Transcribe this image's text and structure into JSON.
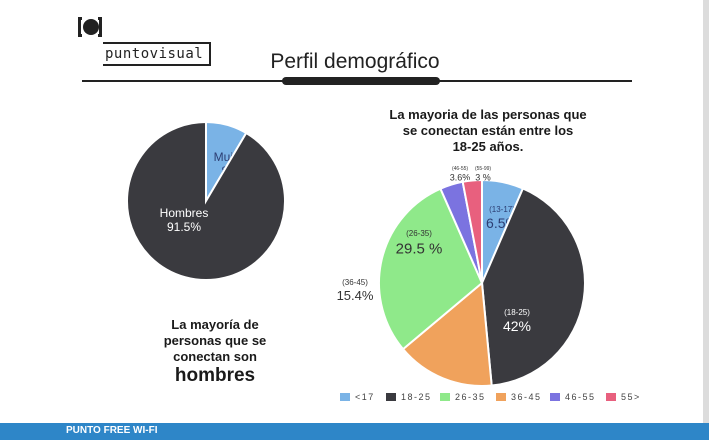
{
  "brand": {
    "logo_text": "puntovisual",
    "logo_icon": "bracket-circle-icon"
  },
  "header": {
    "title": "Perfil demográfico"
  },
  "left_caption": {
    "lines": [
      "La mayoría de",
      "personas que se",
      "conectan son"
    ],
    "emphasis": "hombres"
  },
  "right_caption": {
    "lines": [
      "La mayoria de las personas que",
      "se conectan  están entre los",
      "18-25 años."
    ]
  },
  "footer": {
    "text": "PUNTO FREE WI-FI",
    "color": "#2e86c8"
  },
  "colors": {
    "dark": "#3a3a3f",
    "blue": "#7ab3e6",
    "green": "#8fe98a",
    "orange": "#f0a25c",
    "purple": "#7b73e0",
    "pink": "#e8607e"
  },
  "chart_data": [
    {
      "type": "pie",
      "title": "",
      "slices": [
        {
          "label": "Mujeres",
          "value_text": "8.5%",
          "value": 8.5,
          "color": "#7ab3e6"
        },
        {
          "label": "Hombres",
          "value_text": "91.5%",
          "value": 91.5,
          "color": "#3a3a3f"
        }
      ]
    },
    {
      "type": "pie",
      "title": "",
      "slices": [
        {
          "label": "(13-17)",
          "value_text": "6.5%",
          "value": 6.5,
          "color": "#7ab3e6"
        },
        {
          "label": "(18-25)",
          "value_text": "42%",
          "value": 42,
          "color": "#3a3a3f"
        },
        {
          "label": "(36-45)",
          "value_text": "15.4%",
          "value": 15.4,
          "color": "#f0a25c"
        },
        {
          "label": "(26-35)",
          "value_text": "29.5 %",
          "value": 29.5,
          "color": "#8fe98a"
        },
        {
          "label": "(46-55)",
          "value_text": "3.6%",
          "value": 3.6,
          "color": "#7b73e0"
        },
        {
          "label": "(55-99)",
          "value_text": "3 %",
          "value": 3,
          "color": "#e8607e"
        }
      ],
      "legend": {
        "position": "bottom",
        "entries": [
          {
            "label": "<17",
            "color": "#7ab3e6"
          },
          {
            "label": "18-25",
            "color": "#3a3a3f"
          },
          {
            "label": "26-35",
            "color": "#8fe98a"
          },
          {
            "label": "36-45",
            "color": "#f0a25c"
          },
          {
            "label": "46-55",
            "color": "#7b73e0"
          },
          {
            "label": "55>",
            "color": "#e8607e"
          }
        ]
      }
    }
  ]
}
